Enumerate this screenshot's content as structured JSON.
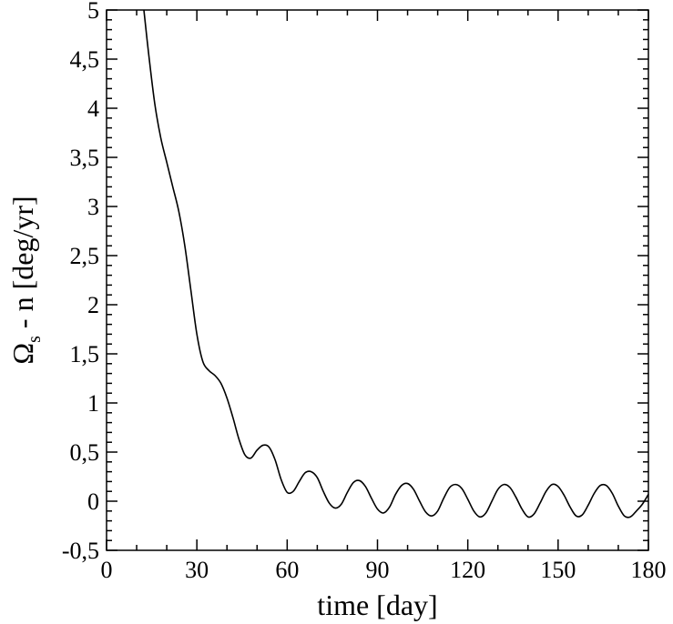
{
  "chart_data": {
    "type": "line",
    "title": "",
    "xlabel": "time [day]",
    "ylabel": {
      "symbol": "Ω",
      "subscript": "s",
      "rest": " - n  [deg/yr]"
    },
    "xlim": [
      0,
      180
    ],
    "ylim": [
      -0.5,
      5
    ],
    "x_ticks": [
      {
        "value": 0,
        "label": "0"
      },
      {
        "value": 30,
        "label": "30"
      },
      {
        "value": 60,
        "label": "60"
      },
      {
        "value": 90,
        "label": "90"
      },
      {
        "value": 120,
        "label": "120"
      },
      {
        "value": 150,
        "label": "150"
      },
      {
        "value": 180,
        "label": "180"
      }
    ],
    "y_ticks": [
      {
        "value": -0.5,
        "label": "-0,5"
      },
      {
        "value": 0,
        "label": "0"
      },
      {
        "value": 0.5,
        "label": "0,5"
      },
      {
        "value": 1,
        "label": "1"
      },
      {
        "value": 1.5,
        "label": "1,5"
      },
      {
        "value": 2,
        "label": "2"
      },
      {
        "value": 2.5,
        "label": "2,5"
      },
      {
        "value": 3,
        "label": "3"
      },
      {
        "value": 3.5,
        "label": "3,5"
      },
      {
        "value": 4,
        "label": "4"
      },
      {
        "value": 4.5,
        "label": "4,5"
      },
      {
        "value": 5,
        "label": "5"
      }
    ],
    "x_minor_step": 10,
    "y_minor_step": 0.1,
    "grid": false,
    "legend": "none",
    "series": [
      {
        "color": "#000000",
        "x": [
          12.4,
          14,
          16,
          18,
          20,
          22,
          24,
          26,
          28,
          30,
          32,
          34,
          36,
          38,
          40,
          42,
          44,
          46,
          48,
          50,
          52,
          54,
          56,
          58,
          60,
          62,
          64,
          66,
          68,
          70,
          72,
          74,
          76,
          78,
          80,
          82,
          84,
          86,
          88,
          90,
          92,
          94,
          96,
          98,
          100,
          102,
          104,
          106,
          108,
          110,
          112,
          114,
          116,
          118,
          120,
          122,
          124,
          126,
          128,
          130,
          132,
          134,
          136,
          138,
          140,
          142,
          144,
          146,
          148,
          150,
          152,
          154,
          156,
          158,
          160,
          162,
          164,
          166,
          168,
          170,
          172,
          174,
          176,
          178,
          180
        ],
        "y": [
          5.0,
          4.55,
          4.05,
          3.7,
          3.45,
          3.2,
          2.95,
          2.6,
          2.15,
          1.7,
          1.42,
          1.33,
          1.28,
          1.2,
          1.05,
          0.85,
          0.63,
          0.47,
          0.44,
          0.52,
          0.57,
          0.55,
          0.42,
          0.22,
          0.09,
          0.1,
          0.2,
          0.29,
          0.3,
          0.24,
          0.1,
          -0.02,
          -0.07,
          -0.03,
          0.09,
          0.19,
          0.21,
          0.15,
          0.03,
          -0.08,
          -0.12,
          -0.06,
          0.07,
          0.16,
          0.18,
          0.12,
          0.0,
          -0.11,
          -0.15,
          -0.1,
          0.03,
          0.14,
          0.17,
          0.13,
          0.02,
          -0.1,
          -0.16,
          -0.12,
          0.0,
          0.12,
          0.17,
          0.14,
          0.04,
          -0.08,
          -0.16,
          -0.13,
          -0.02,
          0.1,
          0.17,
          0.15,
          0.06,
          -0.06,
          -0.15,
          -0.14,
          -0.04,
          0.08,
          0.16,
          0.16,
          0.08,
          -0.05,
          -0.15,
          -0.16,
          -0.1,
          -0.03,
          0.07
        ]
      }
    ]
  }
}
